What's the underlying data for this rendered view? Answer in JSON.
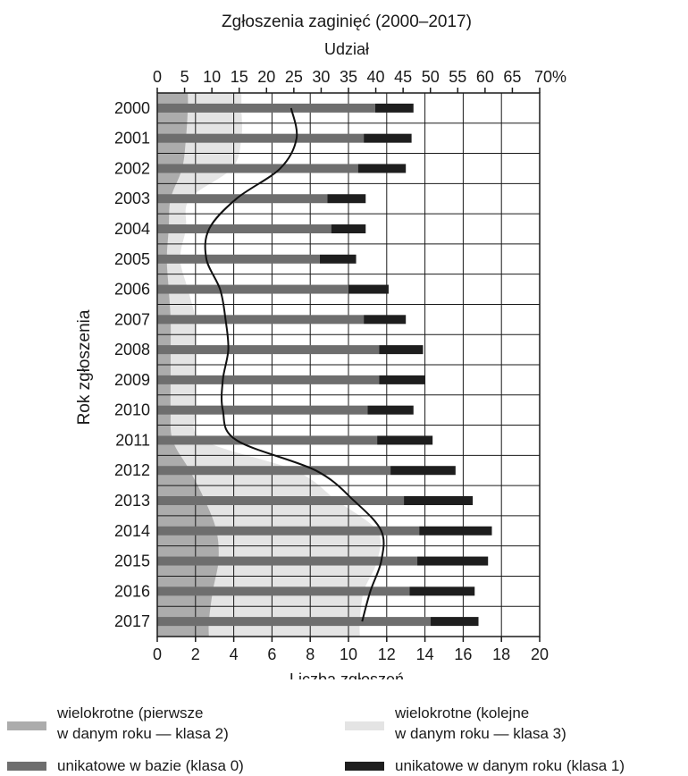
{
  "chart_data": {
    "type": "bar",
    "orientation": "horizontal",
    "stacked": true,
    "title": "Zgłoszenia zaginięć (2000–2017)",
    "top_axis_label": "Udział",
    "xlabel": "Liczba zgłoszeń",
    "ylabel": "Rok zgłoszenia",
    "xlim": [
      0,
      20
    ],
    "x_ticks": [
      "0",
      "2",
      "4",
      "6",
      "8",
      "10",
      "12",
      "14",
      "16",
      "18",
      "20"
    ],
    "top_lim": [
      0,
      70
    ],
    "top_ticks": [
      "0",
      "5",
      "10",
      "15",
      "20",
      "25",
      "30",
      "35",
      "40",
      "45",
      "50",
      "55",
      "60",
      "65",
      "70%"
    ],
    "grid": true,
    "categories": [
      "2000",
      "2001",
      "2002",
      "2003",
      "2004",
      "2005",
      "2006",
      "2007",
      "2008",
      "2009",
      "2010",
      "2011",
      "2012",
      "2013",
      "2014",
      "2015",
      "2016",
      "2017"
    ],
    "series": [
      {
        "name": "unikatowe w bazie (klasa 0)",
        "color": "#6e6e6e",
        "values": [
          11.4,
          10.8,
          10.5,
          8.9,
          9.1,
          8.5,
          10.0,
          10.8,
          11.6,
          11.6,
          11.0,
          11.5,
          12.2,
          12.9,
          13.7,
          13.6,
          13.2,
          14.3
        ]
      },
      {
        "name": "unikatowe w danym roku (klasa 1)",
        "color": "#1e1e1e",
        "values": [
          2.0,
          2.5,
          2.5,
          2.0,
          1.8,
          1.9,
          2.1,
          2.2,
          2.3,
          2.4,
          2.4,
          2.9,
          3.4,
          3.6,
          3.8,
          3.7,
          3.4,
          2.5
        ]
      }
    ],
    "area_series": [
      {
        "name": "wielokrotne (pierwsze\nw danym roku — klasa 2)",
        "color": "#acacac",
        "values": [
          1.6,
          1.5,
          1.3,
          0.7,
          0.6,
          0.5,
          0.6,
          0.7,
          0.7,
          0.7,
          0.7,
          0.8,
          1.7,
          2.5,
          3.1,
          3.2,
          2.9,
          2.7
        ]
      },
      {
        "name": "wielokrotne (kolejne\nw danym roku — klasa 3)",
        "color": "#e4e4e4",
        "values": [
          4.4,
          4.4,
          3.9,
          1.7,
          1.5,
          1.2,
          1.6,
          2.0,
          2.0,
          2.0,
          2.0,
          2.4,
          7.2,
          9.4,
          11.5,
          11.5,
          10.8,
          10.6
        ]
      }
    ],
    "line_series": {
      "axis": "top",
      "unit": "%",
      "color": "#111111",
      "values": [
        24.5,
        25.5,
        22.5,
        14.5,
        9.5,
        9.0,
        11.5,
        12.5,
        13.0,
        12.0,
        12.0,
        14.5,
        29.0,
        36.0,
        41.0,
        41.0,
        39.0,
        37.5
      ]
    },
    "legend_position": "bottom"
  }
}
